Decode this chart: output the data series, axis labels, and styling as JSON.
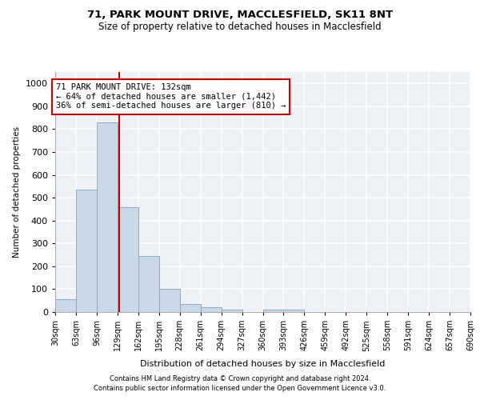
{
  "title1": "71, PARK MOUNT DRIVE, MACCLESFIELD, SK11 8NT",
  "title2": "Size of property relative to detached houses in Macclesfield",
  "xlabel": "Distribution of detached houses by size in Macclesfield",
  "ylabel": "Number of detached properties",
  "bar_color": "#c9d9ea",
  "bar_edge_color": "#8aaac8",
  "property_line_x": 132,
  "property_line_color": "#cc0000",
  "annotation_text": "71 PARK MOUNT DRIVE: 132sqm\n← 64% of detached houses are smaller (1,442)\n36% of semi-detached houses are larger (810) →",
  "annotation_box_color": "#ffffff",
  "annotation_box_edge": "#cc0000",
  "footnote1": "Contains HM Land Registry data © Crown copyright and database right 2024.",
  "footnote2": "Contains public sector information licensed under the Open Government Licence v3.0.",
  "bin_edges": [
    30,
    63,
    96,
    129,
    162,
    195,
    228,
    261,
    294,
    327,
    360,
    393,
    426,
    459,
    492,
    525,
    558,
    591,
    624,
    657,
    690
  ],
  "bar_heights": [
    55,
    535,
    830,
    460,
    245,
    100,
    35,
    20,
    10,
    0,
    10,
    10,
    0,
    0,
    0,
    0,
    0,
    0,
    0,
    0
  ],
  "ylim": [
    0,
    1050
  ],
  "yticks": [
    0,
    100,
    200,
    300,
    400,
    500,
    600,
    700,
    800,
    900,
    1000
  ],
  "background_color": "#eef2f7",
  "grid_color": "#ffffff",
  "fig_width": 6.0,
  "fig_height": 5.0,
  "dpi": 100
}
